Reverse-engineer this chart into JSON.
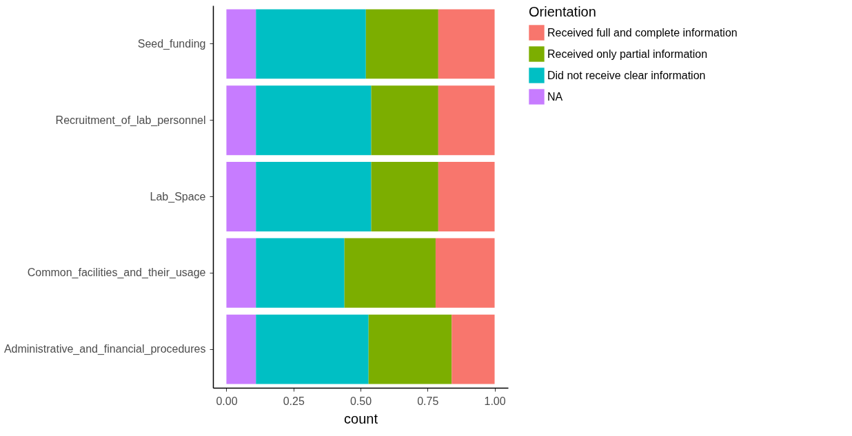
{
  "chart_data": {
    "type": "bar",
    "orientation": "horizontal",
    "stacked": true,
    "xlabel": "count",
    "legend_title": "Orientation",
    "legend": "right",
    "grid": false,
    "categories": [
      "Seed_funding",
      "Recruitment_of_lab_personnel",
      "Lab_Space",
      "Common_facilities_and_their_usage",
      "Administrative_and_financial_procedures"
    ],
    "xlim": [
      -0.05,
      1.05
    ],
    "xticks": [
      {
        "value": 0,
        "label": "0.00"
      },
      0.25,
      {
        "value": 0.5,
        "label": "0.50"
      },
      0.75,
      {
        "value": 1,
        "label": "1.00"
      }
    ],
    "series": [
      {
        "name": "NA",
        "color": "#c77cff",
        "values": [
          0.11,
          0.11,
          0.11,
          0.11,
          0.11
        ]
      },
      {
        "name": "Did not receive clear information",
        "color": "#00bfc4",
        "values": [
          0.41,
          0.43,
          0.43,
          0.33,
          0.42
        ]
      },
      {
        "name": "Received only partial information",
        "color": "#7cae00",
        "values": [
          0.27,
          0.25,
          0.25,
          0.34,
          0.31
        ]
      },
      {
        "name": "Received full and complete information",
        "color": "#f8766d",
        "values": [
          0.21,
          0.21,
          0.21,
          0.22,
          0.16
        ]
      }
    ]
  }
}
